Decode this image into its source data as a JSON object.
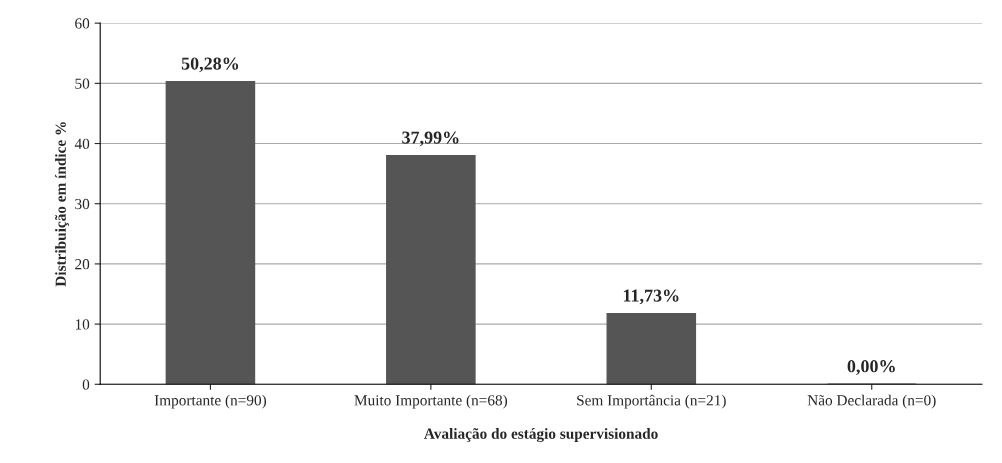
{
  "chart_data": {
    "type": "bar",
    "xlabel": "Avaliação do estágio supervisionado",
    "ylabel": "Distribuição em índice %",
    "categories": [
      "Importante (n=90)",
      "Muito Importante (n=68)",
      "Sem Importância (n=21)",
      "Não Declarada (n=0)"
    ],
    "values": [
      50.28,
      37.99,
      11.73,
      0.0
    ],
    "value_labels": [
      "50,28%",
      "37,99%",
      "11,73%",
      "0,00%"
    ],
    "color": "#555555",
    "ylim": [
      0,
      60
    ],
    "yticks": [
      0,
      10,
      20,
      30,
      40,
      50,
      60
    ],
    "grid": "y"
  }
}
